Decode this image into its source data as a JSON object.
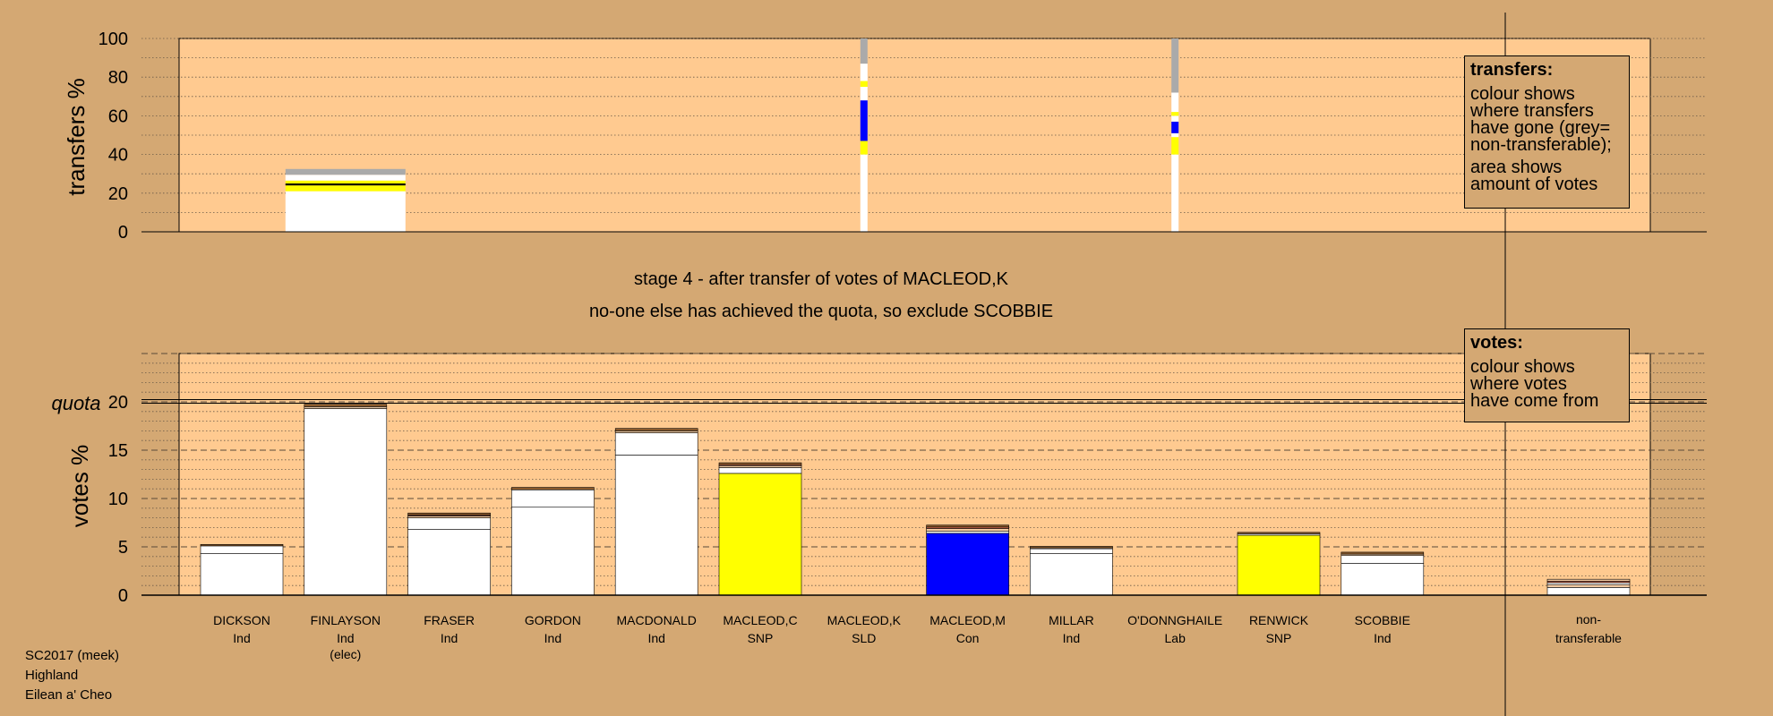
{
  "chart_data": {
    "type": "bar",
    "stage_text": "stage 4 - after transfer of votes of MACLEOD,K",
    "status_text": "no-one else has achieved the quota, so exclude SCOBBIE",
    "transfers": {
      "ylabel": "transfers %",
      "ylim": [
        0,
        100
      ],
      "yticks": [
        "0",
        "20",
        "40",
        "60",
        "80",
        "100"
      ],
      "columns": [
        {
          "candidate": "FINLAYSON",
          "width": "wide",
          "segments": [
            {
              "color": "#ffffff",
              "value": 21
            },
            {
              "color": "#ffff00",
              "value": 3
            },
            {
              "color": "#000000",
              "value": 1
            },
            {
              "color": "#ffff00",
              "value": 1.5
            },
            {
              "color": "#ffffff",
              "value": 3
            },
            {
              "color": "#aaaaaa",
              "value": 3
            }
          ]
        },
        {
          "candidate": "MACLEOD,K",
          "width": "thin",
          "segments": [
            {
              "color": "#ffffff",
              "value": 40
            },
            {
              "color": "#ffff00",
              "value": 7
            },
            {
              "color": "#0000ff",
              "value": 21
            },
            {
              "color": "#ffffff",
              "value": 7
            },
            {
              "color": "#ffff00",
              "value": 3
            },
            {
              "color": "#ffffff",
              "value": 9
            },
            {
              "color": "#aaaaaa",
              "value": 13
            }
          ]
        },
        {
          "candidate": "O'DONNGHAILE",
          "width": "thin",
          "segments": [
            {
              "color": "#ffffff",
              "value": 40
            },
            {
              "color": "#ffff00",
              "value": 9
            },
            {
              "color": "#ffffff",
              "value": 2
            },
            {
              "color": "#0000ff",
              "value": 6
            },
            {
              "color": "#ffffff",
              "value": 3
            },
            {
              "color": "#ffff00",
              "value": 2
            },
            {
              "color": "#ffffff",
              "value": 10
            },
            {
              "color": "#aaaaaa",
              "value": 28
            }
          ]
        }
      ]
    },
    "votes": {
      "ylabel": "votes %",
      "ylim": [
        0,
        25
      ],
      "yticks": [
        "0",
        "5",
        "10",
        "15",
        "20"
      ],
      "quota_label": "quota",
      "quota": 20,
      "categories": [
        {
          "name": "DICKSON",
          "party": "Ind",
          "note": "",
          "segments": [
            {
              "color": "#ffffff",
              "value": 4.3
            },
            {
              "color": "#ffffff",
              "value": 0.8
            },
            {
              "color": "#8b5a2b",
              "value": 0.15
            }
          ]
        },
        {
          "name": "FINLAYSON",
          "party": "Ind",
          "note": "(elec)",
          "segments": [
            {
              "color": "#ffffff",
              "value": 19.3
            },
            {
              "color": "#e8c9a8",
              "value": 0.2
            },
            {
              "color": "#8b5a2b",
              "value": 0.25
            }
          ]
        },
        {
          "name": "FRASER",
          "party": "Ind",
          "note": "",
          "segments": [
            {
              "color": "#ffffff",
              "value": 6.8
            },
            {
              "color": "#ffffff",
              "value": 1.2
            },
            {
              "color": "#f0c8a0",
              "value": 0.2
            },
            {
              "color": "#e07050",
              "value": 0.1
            },
            {
              "color": "#8b5a2b",
              "value": 0.2
            }
          ]
        },
        {
          "name": "GORDON",
          "party": "Ind",
          "note": "",
          "segments": [
            {
              "color": "#ffffff",
              "value": 9.1
            },
            {
              "color": "#ffffff",
              "value": 1.8
            },
            {
              "color": "#8b5a2b",
              "value": 0.25
            }
          ]
        },
        {
          "name": "MACDONALD",
          "party": "Ind",
          "note": "",
          "segments": [
            {
              "color": "#ffffff",
              "value": 14.5
            },
            {
              "color": "#ffffff",
              "value": 2.3
            },
            {
              "color": "#f0c8a0",
              "value": 0.2
            },
            {
              "color": "#8b5a2b",
              "value": 0.25
            }
          ]
        },
        {
          "name": "MACLEOD,C",
          "party": "SNP",
          "note": "",
          "segments": [
            {
              "color": "#ffff00",
              "value": 12.6
            },
            {
              "color": "#ffffff",
              "value": 0.6
            },
            {
              "color": "#f0c8a0",
              "value": 0.2
            },
            {
              "color": "#e07050",
              "value": 0.1
            },
            {
              "color": "#8b5a2b",
              "value": 0.2
            }
          ]
        },
        {
          "name": "MACLEOD,K",
          "party": "SLD",
          "note": "",
          "segments": []
        },
        {
          "name": "MACLEOD,M",
          "party": "Con",
          "note": "",
          "segments": [
            {
              "color": "#0000ff",
              "value": 6.4
            },
            {
              "color": "#ffffff",
              "value": 0.2
            },
            {
              "color": "#f0c8a0",
              "value": 0.3
            },
            {
              "color": "#e07050",
              "value": 0.15
            },
            {
              "color": "#8b5a2b",
              "value": 0.2
            }
          ]
        },
        {
          "name": "MILLAR",
          "party": "Ind",
          "note": "",
          "segments": [
            {
              "color": "#ffffff",
              "value": 4.3
            },
            {
              "color": "#ffffff",
              "value": 0.5
            },
            {
              "color": "#f0c8a0",
              "value": 0.1
            },
            {
              "color": "#8b5a2b",
              "value": 0.15
            }
          ]
        },
        {
          "name": "O'DONNGHAILE",
          "party": "Lab",
          "note": "",
          "segments": []
        },
        {
          "name": "RENWICK",
          "party": "SNP",
          "note": "",
          "segments": [
            {
              "color": "#ffff00",
              "value": 6.2
            },
            {
              "color": "#ffffff",
              "value": 0.15
            },
            {
              "color": "#8b5a2b",
              "value": 0.15
            }
          ]
        },
        {
          "name": "SCOBBIE",
          "party": "Ind",
          "note": "",
          "segments": [
            {
              "color": "#ffffff",
              "value": 3.3
            },
            {
              "color": "#ffffff",
              "value": 0.8
            },
            {
              "color": "#f0c8a0",
              "value": 0.15
            },
            {
              "color": "#8b5a2b",
              "value": 0.2
            }
          ]
        }
      ],
      "nontransferable": {
        "label_line1": "non-",
        "label_line2": "transferable",
        "segments": [
          {
            "color": "#ffffff",
            "value": 0.8
          },
          {
            "color": "#f0c8a0",
            "value": 0.3
          },
          {
            "color": "#ffffff",
            "value": 0.2
          },
          {
            "color": "#e07050",
            "value": 0.15
          },
          {
            "color": "#f0c8a0",
            "value": 0.2
          }
        ]
      }
    },
    "colors": {
      "background": "#d4a873",
      "plot_area": "#ffca90",
      "nontransferable_grey": "#aaaaaa"
    }
  },
  "legend_transfers": {
    "title": "transfers:",
    "lines": [
      "colour shows",
      "where transfers",
      "have gone (grey=",
      "non-transferable);"
    ],
    "lines2": [
      "area shows",
      "amount of votes"
    ]
  },
  "legend_votes": {
    "title": "votes:",
    "lines": [
      "colour shows",
      "where votes",
      "have come from"
    ]
  },
  "footer": {
    "line1": "SC2017 (meek)",
    "line2": "Highland",
    "line3": "Eilean a' Cheo"
  }
}
